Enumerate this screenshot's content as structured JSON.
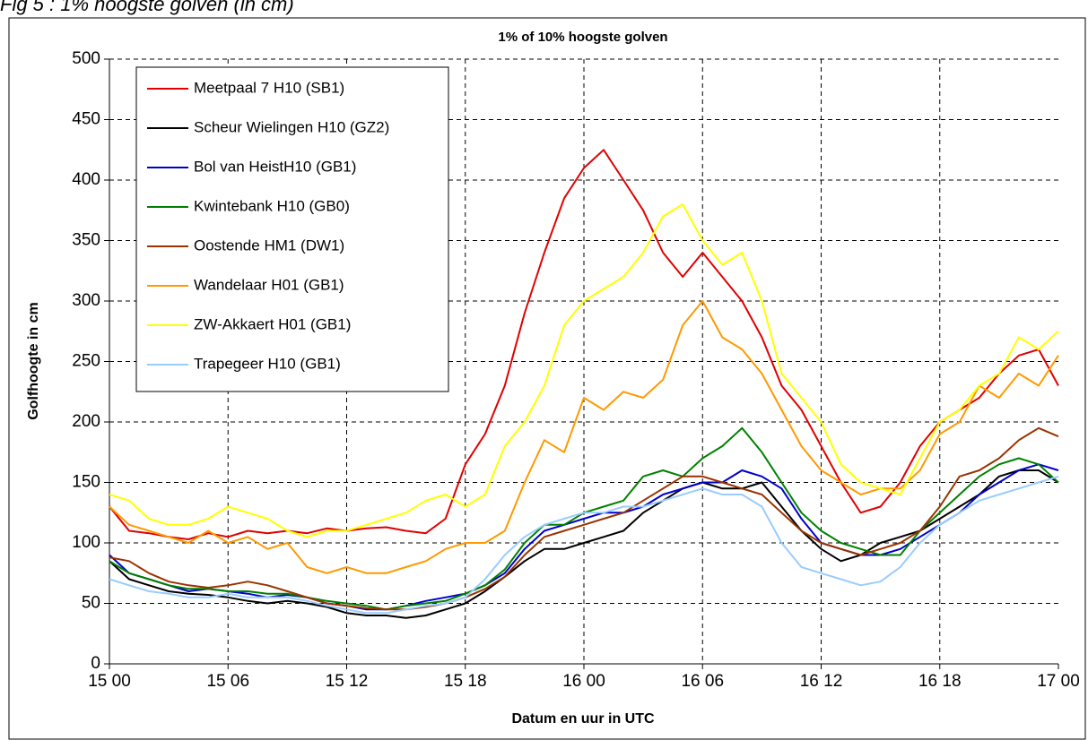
{
  "chart_data": {
    "type": "line",
    "caption": "Fig 5 : 1% hoogste golven (in cm)",
    "title": "1% of 10% hoogste golven",
    "xlabel": "Datum en uur in UTC",
    "ylabel": "Golfhoogte in cm",
    "x": [
      0,
      1,
      2,
      3,
      4,
      5,
      6,
      7,
      8,
      9,
      10,
      11,
      12,
      13,
      14,
      15,
      16,
      17,
      18,
      19,
      20,
      21,
      22,
      23,
      24,
      25,
      26,
      27,
      28,
      29,
      30,
      31,
      32,
      33,
      34,
      35,
      36,
      37,
      38,
      39,
      40,
      41,
      42,
      43,
      44,
      45,
      46,
      47,
      48
    ],
    "xlim": [
      0,
      48
    ],
    "xticks": [
      {
        "value": 0,
        "label": "15 00"
      },
      {
        "value": 6,
        "label": "15 06"
      },
      {
        "value": 12,
        "label": "15 12"
      },
      {
        "value": 18,
        "label": "15 18"
      },
      {
        "value": 24,
        "label": "16 00"
      },
      {
        "value": 30,
        "label": "16 06"
      },
      {
        "value": 36,
        "label": "16 12"
      },
      {
        "value": 42,
        "label": "16 18"
      },
      {
        "value": 48,
        "label": "17 00"
      }
    ],
    "ylim": [
      0,
      500
    ],
    "yticks": [
      0,
      50,
      100,
      150,
      200,
      250,
      300,
      350,
      400,
      450,
      500
    ],
    "grid": true,
    "legend": "upper left",
    "series": [
      {
        "name": "Meetpaal 7 H10 (SB1)",
        "color": "#e00000",
        "values": [
          130,
          110,
          108,
          105,
          103,
          108,
          105,
          110,
          108,
          110,
          108,
          112,
          110,
          112,
          113,
          110,
          108,
          120,
          165,
          190,
          230,
          290,
          340,
          385,
          410,
          425,
          400,
          375,
          340,
          320,
          340,
          320,
          300,
          270,
          230,
          210,
          180,
          150,
          125,
          130,
          150,
          180,
          200,
          210,
          220,
          240,
          255,
          260,
          230
        ]
      },
      {
        "name": "Scheur Wielingen H10 (GZ2)",
        "color": "#000000",
        "values": [
          85,
          70,
          65,
          60,
          58,
          57,
          55,
          52,
          50,
          52,
          50,
          47,
          42,
          40,
          40,
          38,
          40,
          45,
          50,
          60,
          72,
          85,
          95,
          95,
          100,
          105,
          110,
          125,
          135,
          145,
          150,
          145,
          145,
          150,
          130,
          110,
          95,
          85,
          90,
          100,
          105,
          110,
          120,
          130,
          140,
          155,
          160,
          160,
          150
        ]
      },
      {
        "name": "Bol van HeistH10 (GB1)",
        "color": "#0000cc",
        "values": [
          90,
          75,
          70,
          65,
          60,
          62,
          60,
          58,
          55,
          57,
          55,
          50,
          48,
          45,
          45,
          48,
          52,
          55,
          58,
          65,
          75,
          95,
          110,
          115,
          120,
          125,
          125,
          130,
          140,
          145,
          150,
          150,
          160,
          155,
          145,
          120,
          100,
          95,
          90,
          90,
          95,
          105,
          115,
          125,
          140,
          150,
          160,
          165,
          160
        ]
      },
      {
        "name": "Kwintebank H10 (GB0)",
        "color": "#008000",
        "values": [
          85,
          75,
          70,
          65,
          62,
          62,
          60,
          60,
          58,
          58,
          55,
          52,
          50,
          48,
          45,
          48,
          50,
          52,
          58,
          65,
          78,
          100,
          115,
          115,
          125,
          130,
          135,
          155,
          160,
          155,
          170,
          180,
          195,
          175,
          150,
          125,
          110,
          100,
          95,
          90,
          90,
          110,
          125,
          140,
          155,
          165,
          170,
          165,
          150
        ]
      },
      {
        "name": "Oostende HM1 (DW1)",
        "color": "#993300",
        "values": [
          88,
          85,
          75,
          68,
          65,
          63,
          65,
          68,
          65,
          60,
          55,
          50,
          48,
          46,
          45,
          45,
          47,
          50,
          55,
          62,
          72,
          90,
          105,
          110,
          115,
          120,
          125,
          135,
          145,
          155,
          155,
          150,
          145,
          140,
          125,
          110,
          100,
          95,
          90,
          95,
          100,
          110,
          130,
          155,
          160,
          170,
          185,
          195,
          188
        ]
      },
      {
        "name": "Wandelaar H01 (GB1)",
        "color": "#ff9900",
        "values": [
          130,
          115,
          110,
          105,
          100,
          110,
          100,
          105,
          95,
          100,
          80,
          75,
          80,
          75,
          75,
          80,
          85,
          95,
          100,
          100,
          110,
          150,
          185,
          175,
          220,
          210,
          225,
          220,
          235,
          280,
          300,
          270,
          260,
          240,
          210,
          180,
          160,
          150,
          140,
          145,
          145,
          160,
          190,
          200,
          230,
          220,
          240,
          230,
          255
        ]
      },
      {
        "name": "ZW-Akkaert H01 (GB1)",
        "color": "#ffff00",
        "values": [
          140,
          135,
          120,
          115,
          115,
          120,
          130,
          125,
          120,
          110,
          105,
          110,
          110,
          115,
          120,
          125,
          135,
          140,
          130,
          140,
          180,
          200,
          230,
          280,
          300,
          310,
          320,
          340,
          370,
          380,
          350,
          330,
          340,
          300,
          240,
          220,
          200,
          165,
          150,
          145,
          140,
          170,
          200,
          210,
          230,
          240,
          270,
          260,
          275
        ]
      },
      {
        "name": "Trapegeer H10 (GB1)",
        "color": "#99ccff",
        "values": [
          70,
          65,
          60,
          58,
          55,
          55,
          58,
          55,
          55,
          55,
          52,
          48,
          45,
          42,
          42,
          45,
          48,
          50,
          55,
          70,
          90,
          105,
          115,
          120,
          125,
          125,
          130,
          130,
          135,
          140,
          145,
          140,
          140,
          130,
          100,
          80,
          75,
          70,
          65,
          68,
          80,
          100,
          115,
          125,
          135,
          140,
          145,
          150,
          155
        ]
      }
    ]
  }
}
